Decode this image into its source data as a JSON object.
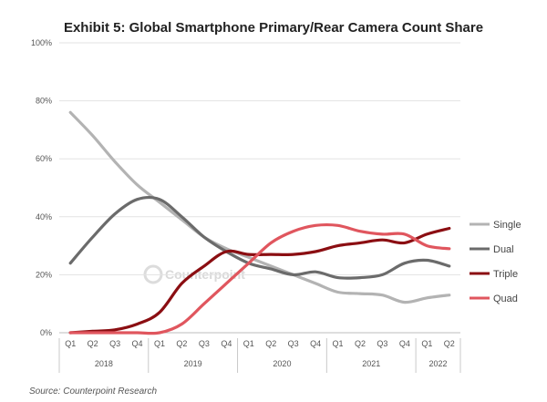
{
  "chart_data": {
    "type": "line",
    "title": "Exhibit 5: Global Smartphone Primary/Rear Camera Count Share",
    "source": "Source: Counterpoint Research",
    "watermark": "Counterpoint",
    "xlabel": "",
    "ylabel": "",
    "quarters": [
      "Q1",
      "Q2",
      "Q3",
      "Q4",
      "Q1",
      "Q2",
      "Q3",
      "Q4",
      "Q1",
      "Q2",
      "Q3",
      "Q4",
      "Q1",
      "Q2",
      "Q3",
      "Q4",
      "Q1",
      "Q2"
    ],
    "years": [
      {
        "label": "2018",
        "start": 0,
        "end": 3
      },
      {
        "label": "2019",
        "start": 4,
        "end": 7
      },
      {
        "label": "2020",
        "start": 8,
        "end": 11
      },
      {
        "label": "2021",
        "start": 12,
        "end": 15
      },
      {
        "label": "2022",
        "start": 16,
        "end": 17
      }
    ],
    "ylim": [
      0,
      100
    ],
    "yticks": [
      0,
      20,
      40,
      60,
      80,
      100
    ],
    "ytick_labels": [
      "0%",
      "20%",
      "40%",
      "60%",
      "80%",
      "100%"
    ],
    "grid": true,
    "legend_position": "right",
    "series": [
      {
        "name": "Single",
        "color": "#b3b3b3",
        "values": [
          76,
          68,
          59,
          51,
          45,
          39,
          33,
          29,
          26,
          23,
          20,
          17,
          14,
          13.5,
          13,
          10.5,
          12,
          13
        ]
      },
      {
        "name": "Dual",
        "color": "#6b6b6b",
        "values": [
          24,
          33,
          41,
          46,
          46,
          40,
          33,
          28,
          24,
          22,
          20,
          21,
          19,
          19,
          20,
          24,
          25,
          23
        ]
      },
      {
        "name": "Triple",
        "color": "#8b0e12",
        "values": [
          0,
          0.5,
          1,
          3,
          7,
          17,
          23,
          28,
          27,
          27,
          27,
          28,
          30,
          31,
          32,
          31,
          34,
          36
        ]
      },
      {
        "name": "Quad",
        "color": "#e0565e",
        "values": [
          0,
          0,
          0,
          0,
          0,
          3,
          10,
          17,
          24,
          31,
          35,
          37,
          37,
          35,
          34,
          34,
          30,
          29
        ]
      }
    ]
  }
}
